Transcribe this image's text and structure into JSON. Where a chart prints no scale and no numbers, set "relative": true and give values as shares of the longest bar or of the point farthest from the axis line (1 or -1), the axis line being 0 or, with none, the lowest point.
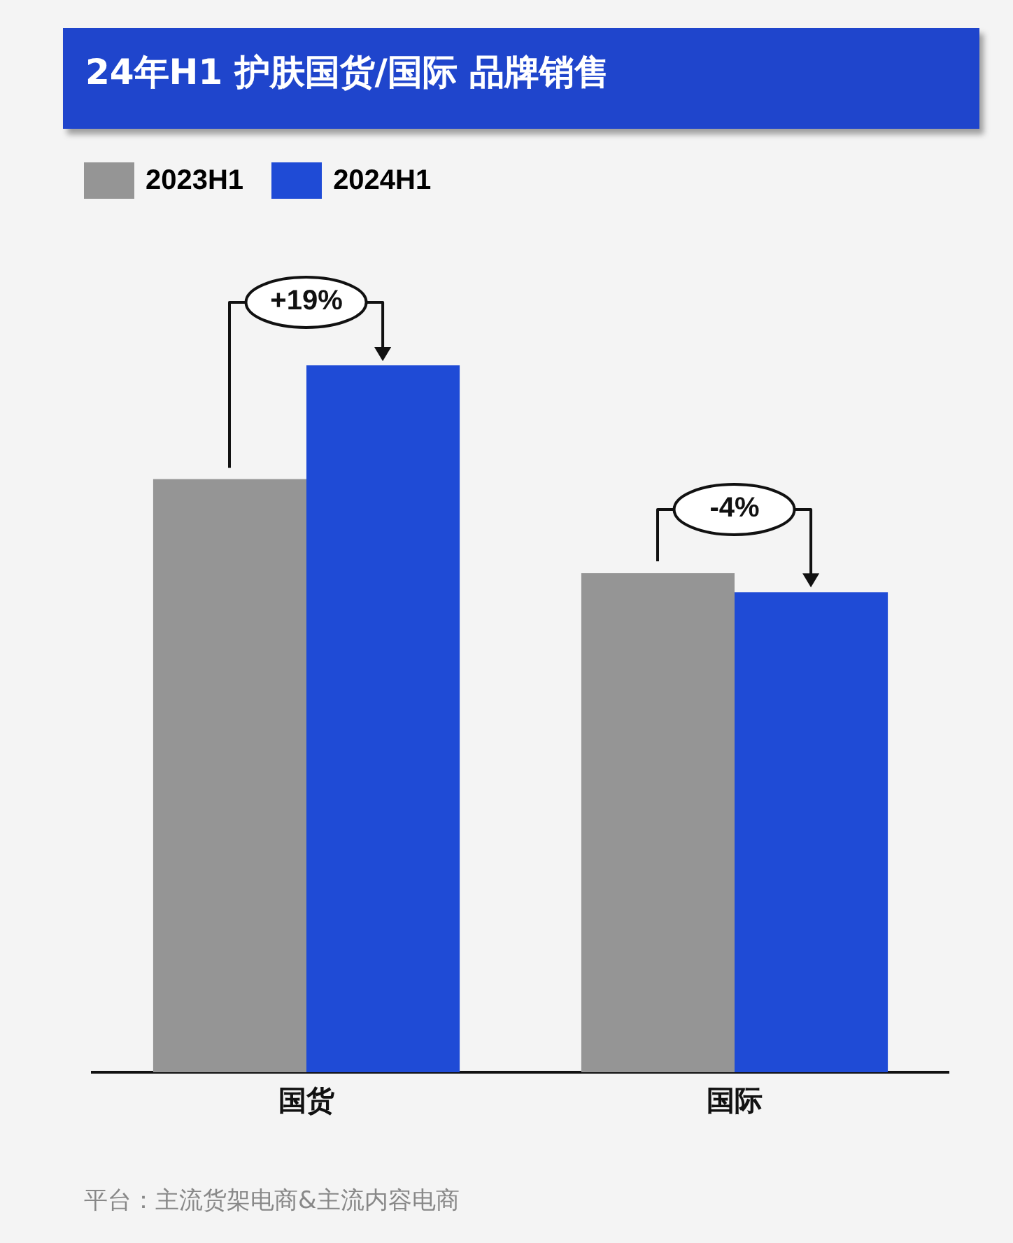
{
  "chart_data": {
    "type": "bar",
    "title": "24年H1 护肤国货/国际 品牌销售",
    "relative": true,
    "legend": "top left",
    "grid": false,
    "categories": [
      "国货",
      "国际"
    ],
    "series": [
      {
        "name": "2023H1",
        "color": "#959595",
        "values": [
          0.839,
          0.706
        ]
      },
      {
        "name": "2024H1",
        "color": "#1f4bd6",
        "values": [
          1,
          0.679
        ]
      }
    ],
    "annotations": [
      "+19%",
      "-4%",
      "平台：主流货架电商&主流内容电商"
    ]
  }
}
